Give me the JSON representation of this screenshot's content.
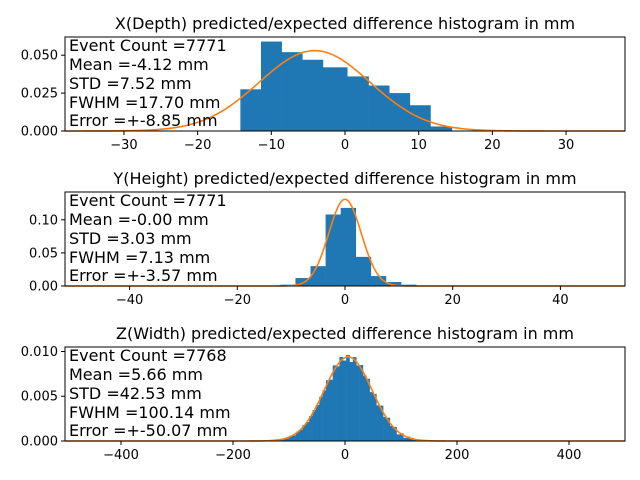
{
  "colors": {
    "bars": "#1f77b4",
    "fit": "#ff7f0e",
    "axis": "#000000",
    "background": "#ffffff"
  },
  "chart_data": [
    {
      "type": "bar",
      "title": "X(Depth) predicted/expected difference histogram in mm",
      "xlim": [
        -38,
        38
      ],
      "ylim": [
        0,
        0.062
      ],
      "xticks": [
        -30,
        -20,
        -10,
        0,
        10,
        20,
        30
      ],
      "yticks": [
        0.0,
        0.025,
        0.05
      ],
      "ytick_labels": [
        "0.000",
        "0.025",
        "0.050"
      ],
      "stats": [
        "Event Count =7771",
        "Mean =-4.12 mm",
        "STD =7.52 mm",
        "FWHM =17.70 mm",
        "Error =+-8.85 mm"
      ],
      "bins": [
        {
          "x0": -14.2,
          "x1": -11.4,
          "y": 0.0275
        },
        {
          "x0": -11.4,
          "x1": -8.6,
          "y": 0.059
        },
        {
          "x0": -8.6,
          "x1": -5.8,
          "y": 0.052
        },
        {
          "x0": -5.8,
          "x1": -3.0,
          "y": 0.047
        },
        {
          "x0": -3.0,
          "x1": 0.3,
          "y": 0.042
        },
        {
          "x0": 0.3,
          "x1": 3.2,
          "y": 0.036
        },
        {
          "x0": 3.2,
          "x1": 6.0,
          "y": 0.03
        },
        {
          "x0": 6.0,
          "x1": 8.8,
          "y": 0.025
        },
        {
          "x0": 8.8,
          "x1": 11.6,
          "y": 0.017
        },
        {
          "x0": 11.6,
          "x1": 14.5,
          "y": 0.003
        }
      ],
      "fit": {
        "mean": -4.12,
        "std": 7.52,
        "peak": 0.053
      }
    },
    {
      "type": "bar",
      "title": "Y(Height) predicted/expected difference histogram in mm",
      "xlim": [
        -52,
        52
      ],
      "ylim": [
        0,
        0.142
      ],
      "xticks": [
        -40,
        -20,
        0,
        20,
        40
      ],
      "yticks": [
        0.0,
        0.05,
        0.1
      ],
      "ytick_labels": [
        "0.00",
        "0.05",
        "0.10"
      ],
      "stats": [
        "Event Count =7771",
        "Mean =-0.00 mm",
        "STD =3.03 mm",
        "FWHM =7.13 mm",
        "Error =+-3.57 mm"
      ],
      "bins": [
        {
          "x0": -12.0,
          "x1": -9.2,
          "y": 0.002
        },
        {
          "x0": -9.2,
          "x1": -6.4,
          "y": 0.012
        },
        {
          "x0": -6.4,
          "x1": -3.6,
          "y": 0.03
        },
        {
          "x0": -3.6,
          "x1": -0.8,
          "y": 0.108
        },
        {
          "x0": -0.8,
          "x1": 2.0,
          "y": 0.118
        },
        {
          "x0": 2.0,
          "x1": 4.8,
          "y": 0.044
        },
        {
          "x0": 4.8,
          "x1": 7.6,
          "y": 0.015
        },
        {
          "x0": 7.6,
          "x1": 10.4,
          "y": 0.006
        },
        {
          "x0": 10.4,
          "x1": 13.2,
          "y": 0.002
        }
      ],
      "fit": {
        "mean": 0.0,
        "std": 3.03,
        "peak": 0.131
      }
    },
    {
      "type": "bar",
      "title": "Z(Width) predicted/expected difference histogram in mm",
      "xlim": [
        -500,
        500
      ],
      "ylim": [
        0,
        0.0105
      ],
      "xticks": [
        -400,
        -200,
        0,
        200,
        400
      ],
      "yticks": [
        0.0,
        0.005,
        0.01
      ],
      "ytick_labels": [
        "0.000",
        "0.005",
        "0.010"
      ],
      "stats": [
        "Event Count =7768",
        "Mean =5.66 mm",
        "STD =42.53 mm",
        "FWHM =100.14 mm",
        "Error =+-50.07 mm"
      ],
      "hist": {
        "x_min": -130,
        "bin_width": 6,
        "mean": 5.66,
        "std": 42.53,
        "peak": 0.0094,
        "jitter": [
          0.0,
          8e-05,
          -6e-05,
          5e-05,
          -4e-05,
          7e-05,
          -8e-05,
          6e-05,
          -5e-05,
          9e-05,
          -7e-05,
          4e-05,
          6e-05,
          -9e-05,
          5e-05,
          -3e-05,
          0.0003,
          -0.0004,
          0.0005,
          -0.0002,
          0.0004,
          -0.0003,
          0.0002,
          -0.0005,
          0.0003,
          -0.0002,
          0.0004,
          -0.0001,
          0.0003,
          -0.0004,
          0.0002,
          -0.0003,
          0.0004,
          -0.0002,
          0.0003,
          -0.0001,
          0.0002,
          -0.0003,
          0.0001,
          -0.0002,
          0.0001,
          8e-05,
          -6e-05,
          5e-05,
          -4e-05,
          7e-05,
          -8e-05,
          6e-05
        ]
      },
      "fit": {
        "mean": 5.66,
        "std": 42.53,
        "peak": 0.0094
      }
    }
  ]
}
